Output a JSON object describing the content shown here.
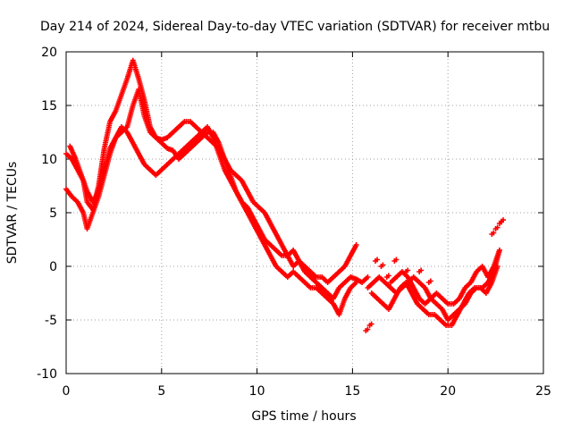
{
  "chart_data": {
    "type": "scatter",
    "title": "Day 214 of 2024, Sidereal Day-to-day VTEC variation (SDTVAR) for receiver mtbu",
    "xlabel": "GPS time / hours",
    "ylabel": "SDTVAR / TECUs",
    "xlim": [
      0,
      25
    ],
    "ylim": [
      -10,
      20
    ],
    "xticks": [
      0,
      5,
      10,
      15,
      20,
      25
    ],
    "yticks": [
      -10,
      -5,
      0,
      5,
      10,
      15,
      20
    ],
    "grid": true,
    "marker": "plus",
    "color": "#ff0000",
    "series": [
      {
        "name": "track-1",
        "x": [
          0.0,
          0.3,
          0.6,
          0.9,
          1.1,
          1.4,
          1.7,
          2.0,
          2.3,
          2.6,
          2.9,
          3.2,
          3.5,
          3.8,
          4.1,
          4.4,
          4.7,
          5.0,
          5.3,
          5.6,
          5.9,
          6.2,
          6.5,
          6.8,
          7.1,
          7.4,
          7.7,
          8.0,
          8.3,
          8.6,
          8.9,
          9.2,
          9.5,
          9.8,
          10.1,
          10.4,
          10.7,
          11.0,
          11.3,
          11.6,
          11.9,
          12.2,
          12.5,
          12.8,
          13.1,
          13.4,
          13.7,
          14.0,
          14.3,
          14.6,
          14.9,
          15.2,
          15.5,
          15.8
        ],
        "y": [
          10.5,
          10.0,
          9.0,
          8.0,
          6.0,
          5.3,
          7.5,
          11.0,
          13.5,
          14.5,
          16.0,
          17.5,
          19.2,
          17.5,
          15.5,
          13.0,
          12.0,
          11.5,
          11.0,
          10.8,
          10.0,
          10.5,
          11.0,
          11.5,
          12.0,
          12.5,
          12.5,
          11.5,
          10.0,
          8.5,
          7.0,
          6.0,
          5.5,
          4.5,
          3.5,
          2.5,
          2.0,
          1.5,
          1.0,
          1.0,
          1.5,
          0.5,
          -0.5,
          -1.0,
          -1.5,
          -2.0,
          -2.5,
          -3.0,
          -2.0,
          -1.5,
          -1.0,
          -1.2,
          -1.5,
          -1.0
        ]
      },
      {
        "name": "track-2",
        "x": [
          0.0,
          0.3,
          0.6,
          0.9,
          1.1,
          1.4,
          1.7,
          2.0,
          2.3,
          2.6,
          2.9,
          3.2,
          3.5,
          3.8,
          4.1,
          4.4,
          4.7,
          5.0,
          5.3,
          5.6,
          5.9,
          6.2,
          6.5,
          6.8,
          7.1,
          7.4,
          7.7,
          8.0,
          8.3,
          8.6,
          8.9,
          9.2,
          9.5,
          9.8,
          10.1,
          10.4,
          10.7,
          11.0,
          11.3,
          11.6,
          11.9,
          12.2,
          12.5,
          12.8,
          13.1,
          13.4,
          13.7,
          14.0,
          14.3,
          14.6,
          14.9,
          15.2
        ],
        "y": [
          7.2,
          6.5,
          6.0,
          5.0,
          3.5,
          5.0,
          6.5,
          8.5,
          10.5,
          12.0,
          13.0,
          12.5,
          11.5,
          10.5,
          9.5,
          9.0,
          8.5,
          9.0,
          9.5,
          10.0,
          10.5,
          11.0,
          11.5,
          12.0,
          12.5,
          13.0,
          12.0,
          10.5,
          9.0,
          8.0,
          7.0,
          6.0,
          5.0,
          4.0,
          3.0,
          2.0,
          1.0,
          0.0,
          -0.5,
          -1.0,
          -0.5,
          -1.0,
          -1.5,
          -2.0,
          -2.0,
          -2.5,
          -3.0,
          -3.5,
          -4.5,
          -3.0,
          -2.0,
          -1.5
        ]
      },
      {
        "name": "track-3",
        "x": [
          0.2,
          0.5,
          0.8,
          1.1,
          1.4,
          1.7,
          2.0,
          2.3,
          2.6,
          2.9,
          3.2,
          3.5,
          3.8,
          4.1,
          4.4,
          4.7,
          5.0,
          5.3,
          5.6,
          5.9,
          6.2,
          6.5,
          6.8,
          7.1,
          7.4,
          7.7,
          8.0,
          8.3,
          8.6,
          8.9,
          9.2,
          9.5,
          9.8,
          10.1,
          10.4,
          10.7,
          11.0,
          11.3,
          11.6,
          11.9,
          12.2,
          12.5,
          12.8,
          13.1,
          13.4,
          13.7,
          14.0,
          14.3,
          14.6,
          14.9,
          15.2
        ],
        "y": [
          11.2,
          10.0,
          8.5,
          7.0,
          6.0,
          7.0,
          9.0,
          11.0,
          12.0,
          12.5,
          13.0,
          15.0,
          16.5,
          14.0,
          12.5,
          12.0,
          11.8,
          12.0,
          12.5,
          13.0,
          13.5,
          13.5,
          13.0,
          12.5,
          12.0,
          11.5,
          11.0,
          10.0,
          9.0,
          8.5,
          8.0,
          7.0,
          6.0,
          5.5,
          5.0,
          4.0,
          3.0,
          2.0,
          1.0,
          0.0,
          0.5,
          0.0,
          -0.5,
          -1.0,
          -1.0,
          -1.5,
          -1.0,
          -0.5,
          0.0,
          1.0,
          2.0
        ]
      },
      {
        "name": "track-4",
        "x": [
          15.8,
          16.1,
          16.4,
          16.7,
          17.0,
          17.3,
          17.6,
          17.9,
          18.2,
          18.5,
          18.8,
          19.1,
          19.4,
          19.7,
          20.0,
          20.3,
          20.6,
          20.9,
          21.2,
          21.5,
          21.8,
          22.1,
          22.4,
          22.7
        ],
        "y": [
          -2.0,
          -1.5,
          -1.0,
          -1.5,
          -2.0,
          -2.5,
          -2.0,
          -1.5,
          -1.0,
          -1.5,
          -2.0,
          -3.0,
          -3.5,
          -4.0,
          -5.0,
          -4.5,
          -4.0,
          -3.5,
          -2.5,
          -2.0,
          -2.0,
          -1.5,
          -0.5,
          1.5
        ]
      },
      {
        "name": "track-5",
        "x": [
          16.0,
          16.3,
          16.6,
          16.9,
          17.2,
          17.5,
          17.8,
          18.1,
          18.4,
          18.7,
          19.0,
          19.3,
          19.6,
          19.9,
          20.2,
          20.5,
          20.8,
          21.1,
          21.4,
          21.7,
          22.0,
          22.3,
          22.6
        ],
        "y": [
          -2.5,
          -3.0,
          -3.5,
          -4.0,
          -3.0,
          -2.0,
          -1.5,
          -2.5,
          -3.5,
          -4.0,
          -4.5,
          -4.5,
          -5.0,
          -5.5,
          -5.5,
          -4.5,
          -3.5,
          -2.5,
          -2.0,
          -2.0,
          -2.5,
          -1.5,
          0.0
        ]
      },
      {
        "name": "track-6",
        "x": [
          17.0,
          17.3,
          17.6,
          17.9,
          18.2,
          18.5,
          18.8,
          19.1,
          19.4,
          19.7,
          20.0,
          20.3,
          20.6,
          20.9,
          21.2,
          21.5,
          21.8,
          22.1,
          22.4,
          22.7
        ],
        "y": [
          -1.5,
          -1.0,
          -0.5,
          -1.0,
          -2.0,
          -3.0,
          -3.5,
          -3.0,
          -2.5,
          -3.0,
          -3.5,
          -3.5,
          -3.0,
          -2.0,
          -1.5,
          -0.5,
          0.0,
          -1.0,
          0.0,
          1.5
        ]
      },
      {
        "name": "scattered",
        "x": [
          15.7,
          15.9,
          16.2,
          16.5,
          16.8,
          17.2,
          17.8,
          18.5,
          19.0,
          22.3,
          22.5,
          22.7,
          22.8
        ],
        "y": [
          -6.0,
          -5.5,
          0.5,
          0.0,
          -1.0,
          0.5,
          -0.5,
          -0.5,
          -1.5,
          3.0,
          3.5,
          4.0,
          4.2
        ]
      }
    ]
  }
}
